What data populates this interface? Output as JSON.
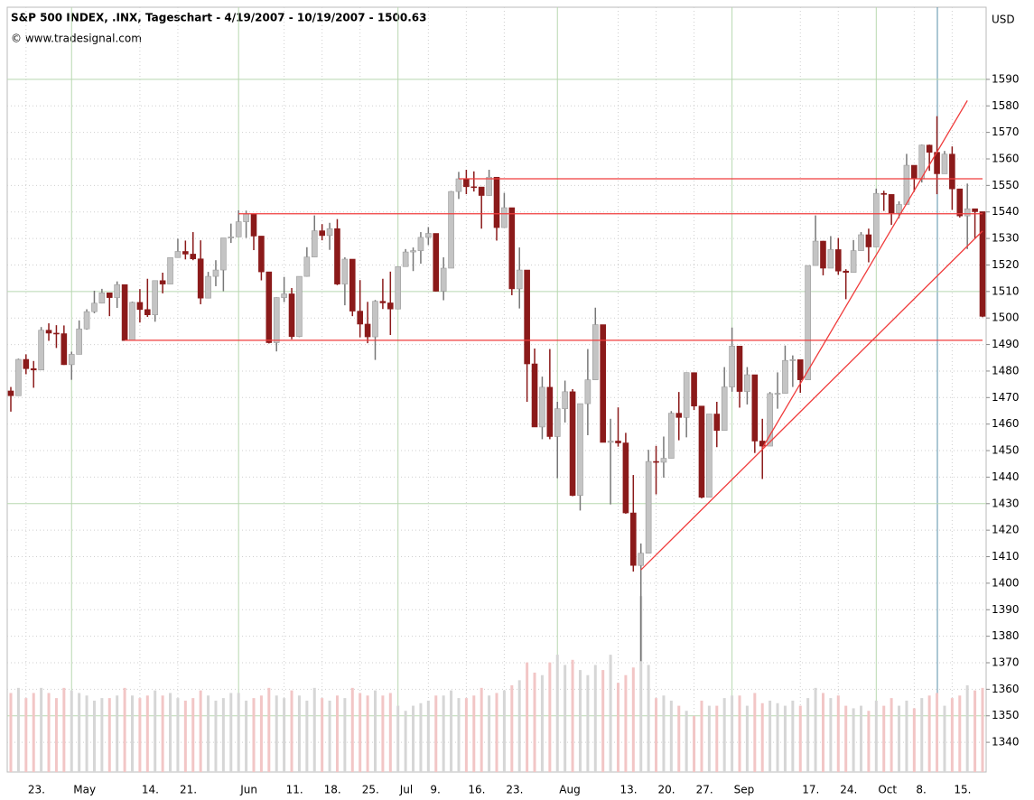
{
  "chart_data": {
    "type": "candlestick",
    "title": "S&P 500 INDEX, .INX, Tageschart - 4/19/2007 - 10/19/2007 - 1500.63",
    "subtitle": "© www.tradesignal.com",
    "y_label": "USD",
    "categories": [
      "04-19",
      "04-20",
      "04-23",
      "04-24",
      "04-25",
      "04-26",
      "04-27",
      "04-30",
      "05-01",
      "05-02",
      "05-03",
      "05-04",
      "05-07",
      "05-08",
      "05-09",
      "05-10",
      "05-11",
      "05-14",
      "05-15",
      "05-16",
      "05-17",
      "05-18",
      "05-21",
      "05-22",
      "05-23",
      "05-24",
      "05-25",
      "05-29",
      "05-30",
      "05-31",
      "06-01",
      "06-04",
      "06-05",
      "06-06",
      "06-07",
      "06-08",
      "06-11",
      "06-12",
      "06-13",
      "06-14",
      "06-15",
      "06-18",
      "06-19",
      "06-20",
      "06-21",
      "06-22",
      "06-25",
      "06-26",
      "06-27",
      "06-28",
      "06-29",
      "07-02",
      "07-03",
      "07-05",
      "07-06",
      "07-09",
      "07-10",
      "07-11",
      "07-12",
      "07-13",
      "07-16",
      "07-17",
      "07-18",
      "07-19",
      "07-20",
      "07-23",
      "07-24",
      "07-25",
      "07-26",
      "07-27",
      "07-30",
      "07-31",
      "08-01",
      "08-02",
      "08-03",
      "08-06",
      "08-07",
      "08-08",
      "08-09",
      "08-10",
      "08-13",
      "08-14",
      "08-15",
      "08-16",
      "08-17",
      "08-20",
      "08-21",
      "08-22",
      "08-23",
      "08-24",
      "08-27",
      "08-28",
      "08-29",
      "08-30",
      "08-31",
      "09-04",
      "09-05",
      "09-06",
      "09-07",
      "09-10",
      "09-11",
      "09-12",
      "09-13",
      "09-14",
      "09-17",
      "09-18",
      "09-19",
      "09-20",
      "09-21",
      "09-24",
      "09-25",
      "09-26",
      "09-27",
      "09-28",
      "10-01",
      "10-02",
      "10-03",
      "10-04",
      "10-05",
      "10-08",
      "10-09",
      "10-10",
      "10-11",
      "10-12",
      "10-15",
      "10-16",
      "10-17",
      "10-18",
      "10-19"
    ],
    "open": [
      1472.5,
      1470.7,
      1484.4,
      1480.9,
      1480.4,
      1495.4,
      1494.3,
      1494.1,
      1482.4,
      1486.3,
      1495.9,
      1502.4,
      1505.6,
      1509.5,
      1507.7,
      1512.6,
      1491.5,
      1505.9,
      1503.2,
      1501.2,
      1514.1,
      1512.8,
      1522.8,
      1525.1,
      1524.1,
      1522.3,
      1507.5,
      1515.7,
      1518.1,
      1530.2,
      1530.6,
      1536.3,
      1539.2,
      1530.9,
      1517.4,
      1490.7,
      1507.7,
      1509.1,
      1493.0,
      1515.7,
      1523.0,
      1532.9,
      1531.1,
      1533.7,
      1512.8,
      1522.2,
      1502.6,
      1497.7,
      1492.9,
      1506.3,
      1505.7,
      1503.4,
      1519.4,
      1524.9,
      1525.4,
      1530.4,
      1531.9,
      1510.1,
      1518.8,
      1547.7,
      1552.5,
      1549.5,
      1549.4,
      1546.2,
      1553.1,
      1534.1,
      1541.6,
      1511.0,
      1518.1,
      1482.7,
      1458.9,
      1473.9,
      1455.3,
      1465.8,
      1472.2,
      1433.1,
      1467.7,
      1476.7,
      1497.5,
      1453.1,
      1453.6,
      1452.9,
      1426.5,
      1406.7,
      1411.3,
      1445.9,
      1445.6,
      1447.1,
      1464.1,
      1462.5,
      1479.4,
      1466.8,
      1432.4,
      1463.8,
      1457.6,
      1474.0,
      1489.4,
      1472.3,
      1478.6,
      1453.6,
      1451.7,
      1471.5,
      1471.6,
      1484.0,
      1484.3,
      1476.7,
      1519.8,
      1529.0,
      1518.8,
      1525.8,
      1517.7,
      1517.2,
      1525.4,
      1531.4,
      1526.8,
      1547.0,
      1546.6,
      1539.6,
      1542.8,
      1557.6,
      1552.6,
      1565.2,
      1562.5,
      1554.4,
      1561.8,
      1548.7,
      1538.5,
      1541.2,
      1540.1
    ],
    "high": [
      1474.0,
      1484.7,
      1486.3,
      1483.8,
      1496.6,
      1498.0,
      1497.3,
      1497.2,
      1487.3,
      1499.1,
      1503.3,
      1510.3,
      1511.0,
      1509.5,
      1513.8,
      1512.6,
      1506.2,
      1510.9,
      1514.8,
      1514.2,
      1517.1,
      1522.8,
      1529.9,
      1529.2,
      1532.4,
      1529.3,
      1517.4,
      1521.8,
      1530.2,
      1535.6,
      1540.6,
      1540.5,
      1539.2,
      1530.9,
      1517.4,
      1507.8,
      1515.5,
      1511.3,
      1515.7,
      1526.7,
      1538.7,
      1535.4,
      1535.9,
      1537.3,
      1522.9,
      1522.2,
      1514.3,
      1506.1,
      1506.8,
      1514.8,
      1517.5,
      1519.5,
      1526.0,
      1526.6,
      1532.4,
      1534.3,
      1531.9,
      1522.9,
      1547.9,
      1555.1,
      1555.9,
      1555.3,
      1549.4,
      1555.9,
      1553.1,
      1547.2,
      1541.6,
      1526.6,
      1518.1,
      1488.5,
      1477.9,
      1488.3,
      1468.4,
      1476.4,
      1473.2,
      1467.7,
      1488.3,
      1503.9,
      1497.5,
      1462.0,
      1466.3,
      1456.7,
      1440.8,
      1415.0,
      1450.3,
      1451.8,
      1455.3,
      1464.9,
      1472.1,
      1479.5,
      1479.4,
      1466.8,
      1463.8,
      1468.4,
      1481.5,
      1496.4,
      1489.4,
      1481.5,
      1478.6,
      1462.0,
      1472.1,
      1479.5,
      1489.6,
      1485.9,
      1484.3,
      1519.8,
      1538.7,
      1529.1,
      1530.9,
      1530.2,
      1518.4,
      1529.4,
      1532.4,
      1533.7,
      1548.8,
      1548.0,
      1546.6,
      1544.0,
      1561.9,
      1557.6,
      1565.4,
      1565.4,
      1576.1,
      1563.0,
      1564.7,
      1548.7,
      1550.7,
      1541.2,
      1540.1
    ],
    "low": [
      1464.7,
      1470.7,
      1478.8,
      1473.7,
      1480.4,
      1491.4,
      1488.7,
      1482.3,
      1476.7,
      1486.3,
      1495.6,
      1501.8,
      1505.5,
      1500.7,
      1503.8,
      1491.4,
      1491.5,
      1498.3,
      1500.4,
      1498.6,
      1509.3,
      1512.8,
      1522.7,
      1522.1,
      1521.8,
      1505.2,
      1507.5,
      1512.0,
      1510.1,
      1528.3,
      1530.6,
      1530.2,
      1525.6,
      1514.2,
      1490.4,
      1487.4,
      1506.0,
      1492.0,
      1492.8,
      1515.6,
      1523.0,
      1529.3,
      1525.7,
      1512.4,
      1504.8,
      1500.7,
      1492.7,
      1490.5,
      1484.2,
      1503.4,
      1493.6,
      1503.4,
      1519.4,
      1517.7,
      1520.5,
      1527.5,
      1510.0,
      1506.7,
      1518.8,
      1544.9,
      1546.7,
      1547.7,
      1533.7,
      1546.1,
      1529.2,
      1534.1,
      1508.6,
      1503.6,
      1468.4,
      1458.9,
      1454.3,
      1454.3,
      1439.6,
      1460.6,
      1432.8,
      1427.4,
      1455.8,
      1476.7,
      1453.1,
      1429.7,
      1451.5,
      1426.2,
      1404.4,
      1370.6,
      1411.3,
      1433.5,
      1439.8,
      1447.1,
      1453.9,
      1455.0,
      1465.3,
      1432.0,
      1432.4,
      1451.3,
      1457.6,
      1472.2,
      1466.2,
      1467.4,
      1449.1,
      1439.3,
      1451.7,
      1465.8,
      1471.6,
      1474.0,
      1471.8,
      1476.7,
      1519.8,
      1516.1,
      1518.8,
      1516.3,
      1507.1,
      1517.2,
      1525.4,
      1521.0,
      1526.8,
      1540.4,
      1535.1,
      1537.6,
      1542.8,
      1547.6,
      1551.1,
      1555.5,
      1546.7,
      1554.4,
      1540.8,
      1537.9,
      1526.0,
      1530.0,
      1500.3
    ],
    "close": [
      1470.7,
      1484.4,
      1480.9,
      1480.4,
      1495.4,
      1494.3,
      1494.1,
      1482.4,
      1486.3,
      1495.9,
      1502.4,
      1505.6,
      1509.5,
      1507.7,
      1512.6,
      1491.5,
      1505.9,
      1503.2,
      1501.2,
      1514.1,
      1512.8,
      1522.8,
      1525.1,
      1524.1,
      1522.3,
      1507.5,
      1515.7,
      1518.1,
      1530.2,
      1530.6,
      1536.3,
      1539.2,
      1530.9,
      1517.4,
      1490.7,
      1507.7,
      1509.1,
      1493.0,
      1515.7,
      1523.0,
      1532.9,
      1531.1,
      1533.7,
      1512.8,
      1522.2,
      1502.6,
      1497.7,
      1492.9,
      1506.3,
      1505.7,
      1503.4,
      1519.4,
      1524.9,
      1525.4,
      1530.4,
      1531.9,
      1510.1,
      1518.8,
      1547.7,
      1552.5,
      1549.5,
      1549.4,
      1546.2,
      1553.1,
      1534.1,
      1541.6,
      1511.0,
      1518.1,
      1482.7,
      1458.9,
      1473.9,
      1455.3,
      1465.8,
      1472.2,
      1433.1,
      1467.7,
      1476.7,
      1497.5,
      1453.1,
      1453.6,
      1452.9,
      1426.5,
      1406.7,
      1411.3,
      1445.9,
      1445.6,
      1447.1,
      1464.1,
      1462.5,
      1479.4,
      1466.8,
      1432.4,
      1463.8,
      1457.6,
      1474.0,
      1489.4,
      1472.3,
      1478.6,
      1453.6,
      1451.7,
      1471.5,
      1471.6,
      1484.0,
      1484.3,
      1476.7,
      1519.8,
      1529.0,
      1518.8,
      1525.8,
      1517.7,
      1517.2,
      1525.4,
      1531.4,
      1526.8,
      1547.0,
      1546.6,
      1539.6,
      1542.8,
      1557.6,
      1552.6,
      1565.2,
      1562.5,
      1554.4,
      1561.8,
      1548.7,
      1538.5,
      1541.2,
      1540.1,
      1500.63
    ],
    "volume": [
      3.1,
      3.3,
      2.9,
      3.1,
      3.3,
      3.1,
      2.9,
      3.3,
      3.2,
      3.1,
      3.0,
      2.8,
      2.9,
      2.9,
      3.0,
      3.3,
      3.0,
      2.9,
      3.0,
      3.2,
      3.0,
      3.1,
      2.9,
      2.8,
      2.9,
      3.2,
      3.0,
      2.8,
      2.9,
      3.1,
      3.1,
      2.8,
      2.9,
      3.0,
      3.3,
      3.0,
      2.9,
      3.2,
      3.0,
      2.8,
      3.3,
      2.9,
      2.8,
      3.0,
      2.9,
      3.3,
      3.1,
      3.0,
      3.2,
      3.0,
      3.1,
      2.6,
      2.4,
      2.6,
      2.7,
      2.8,
      3.0,
      3.0,
      3.2,
      2.9,
      2.9,
      3.0,
      3.3,
      3.0,
      3.1,
      3.2,
      3.4,
      3.6,
      4.3,
      3.9,
      3.8,
      4.3,
      4.6,
      4.2,
      4.4,
      4.0,
      3.8,
      4.2,
      4.0,
      4.6,
      3.5,
      3.8,
      4.1,
      6.9,
      4.2,
      2.9,
      3.0,
      2.8,
      2.6,
      2.4,
      2.2,
      2.8,
      2.6,
      2.6,
      2.9,
      3.0,
      3.0,
      2.6,
      3.1,
      2.7,
      2.8,
      2.7,
      2.6,
      2.8,
      2.6,
      2.9,
      3.3,
      3.1,
      2.9,
      3.0,
      2.6,
      2.5,
      2.6,
      2.4,
      2.8,
      2.6,
      2.9,
      2.6,
      2.8,
      2.5,
      2.9,
      3.0,
      3.1,
      2.6,
      2.9,
      3.0,
      3.4,
      3.2,
      3.3
    ],
    "volume_lim": [
      0,
      30
    ],
    "up_color": "#c4c4c4",
    "down_color": "#8b1a1a",
    "up_volume_color": "#d6d6d6",
    "down_volume_color": "#f2c6c6",
    "line_color": "#f03c3c",
    "grid_color": "#b8d8b0",
    "ylim": [
      1328.8,
      1617.2
    ],
    "yticks": [
      1340,
      1350,
      1360,
      1370,
      1380,
      1390,
      1400,
      1410,
      1420,
      1430,
      1440,
      1450,
      1460,
      1470,
      1480,
      1490,
      1500,
      1510,
      1520,
      1530,
      1540,
      1550,
      1560,
      1570,
      1580,
      1590
    ],
    "y_major_ticks": [
      1350,
      1430,
      1510,
      1590
    ],
    "xticks": [
      {
        "value": "04-23",
        "label": "23."
      },
      {
        "value": "05-01",
        "label": "May"
      },
      {
        "value": "05-14",
        "label": "14."
      },
      {
        "value": "05-21",
        "label": "21."
      },
      {
        "value": "06-01",
        "label": "Jun"
      },
      {
        "value": "06-11",
        "label": "11."
      },
      {
        "value": "06-18",
        "label": "18."
      },
      {
        "value": "06-25",
        "label": "25."
      },
      {
        "value": "07-02",
        "label": "Jul"
      },
      {
        "value": "07-09",
        "label": "9."
      },
      {
        "value": "07-16",
        "label": "16."
      },
      {
        "value": "07-23",
        "label": "23."
      },
      {
        "value": "08-01",
        "label": "Aug"
      },
      {
        "value": "08-13",
        "label": "13."
      },
      {
        "value": "08-20",
        "label": "20."
      },
      {
        "value": "08-27",
        "label": "27."
      },
      {
        "value": "09-04",
        "label": "Sep"
      },
      {
        "value": "09-17",
        "label": "17."
      },
      {
        "value": "09-24",
        "label": "24."
      },
      {
        "value": "10-01",
        "label": "Oct"
      },
      {
        "value": "10-08",
        "label": "8."
      },
      {
        "value": "10-15",
        "label": "15."
      }
    ],
    "x_major_ticks": [
      "05-01",
      "06-01",
      "07-02",
      "08-01",
      "09-04",
      "10-01"
    ],
    "lines": [
      {
        "from": "07-13",
        "to": "10-19",
        "start": 1552.5,
        "end": 1552.5
      },
      {
        "from": "06-01",
        "to": "10-19",
        "start": 1539.3,
        "end": 1539.3
      },
      {
        "from": "05-10",
        "to": "10-19",
        "start": 1491.6,
        "end": 1491.6
      },
      {
        "from": "08-16",
        "to": "10-19",
        "start": 1405,
        "end": 1532.8
      },
      {
        "from": "09-10",
        "to": "10-17",
        "start": 1451,
        "end": 1582
      }
    ],
    "grid": true
  }
}
